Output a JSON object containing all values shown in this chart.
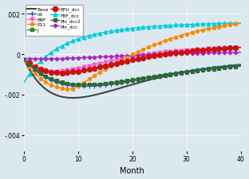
{
  "xlabel": "Month",
  "xlim": [
    0,
    40
  ],
  "ylim": [
    -0.0048,
    0.0025
  ],
  "yticks": [
    -0.004,
    -0.002,
    0,
    0.002
  ],
  "ytick_labels": [
    "-.004",
    "-.002",
    "0",
    ".002"
  ],
  "xticks": [
    0,
    10,
    20,
    30,
    40
  ],
  "bg_color": "#dce8f0",
  "series": [
    {
      "label": "Base",
      "color": "#444444",
      "marker": null,
      "ms": 0,
      "lw": 1.5
    },
    {
      "label": "BBF",
      "color": "#ff55cc",
      "marker": "v",
      "ms": 3.5,
      "lw": 1.0
    },
    {
      "label": "J",
      "color": "#228822",
      "marker": "s",
      "ms": 3.5,
      "lw": 1.0
    },
    {
      "label": "FBF_dcc",
      "color": "#00ccdd",
      "marker": "^",
      "ms": 3.5,
      "lw": 1.0
    },
    {
      "label": "Phi_dcc",
      "color": "#aa22cc",
      "marker": "D",
      "ms": 2.5,
      "lw": 1.0
    },
    {
      "label": "d1",
      "color": "#2255cc",
      "marker": "+",
      "ms": 4.0,
      "lw": 1.0
    },
    {
      "label": "E11",
      "color": "#ff8800",
      "marker": "o",
      "ms": 3.0,
      "lw": 1.0
    },
    {
      "label": "EPU_dcc",
      "color": "#cc1111",
      "marker": "o",
      "ms": 4.5,
      "lw": 1.0
    },
    {
      "label": "Phi_dcc2",
      "color": "#336633",
      "marker": "s",
      "ms": 3.5,
      "lw": 1.0
    }
  ]
}
